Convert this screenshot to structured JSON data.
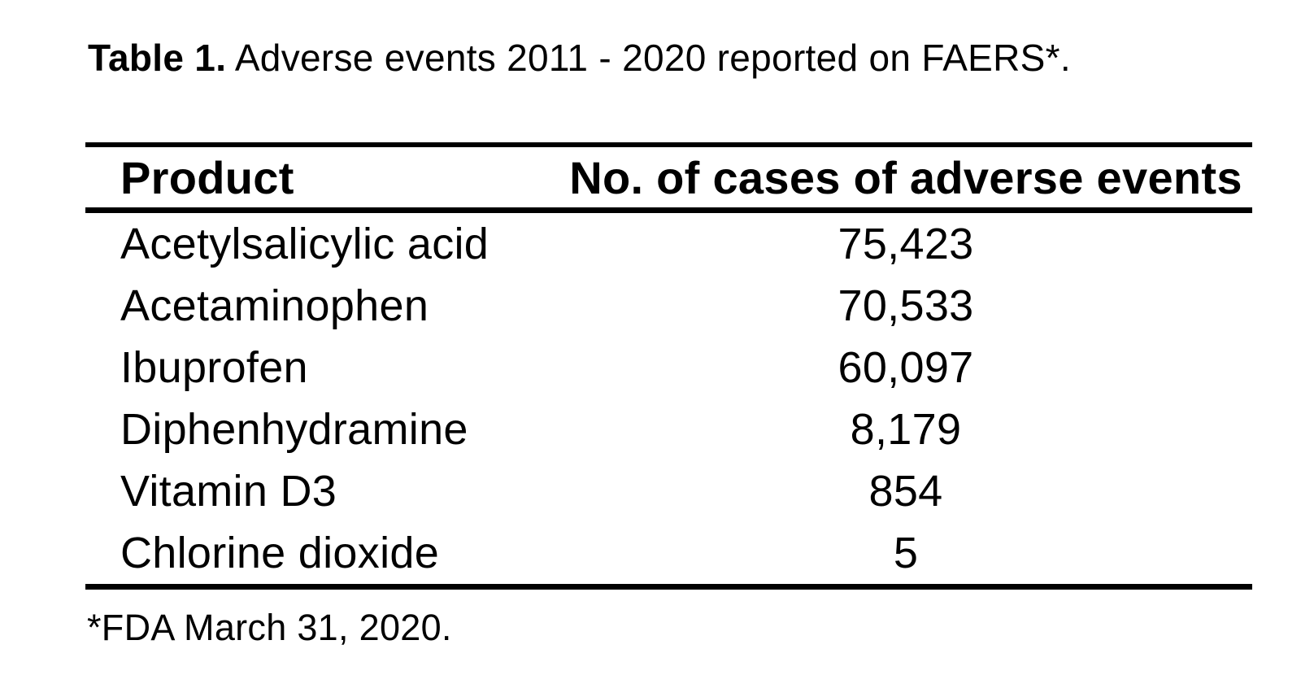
{
  "caption": {
    "label": "Table 1.",
    "text": "Adverse events 2011 - 2020 reported on FAERS*."
  },
  "table": {
    "columns": [
      "Product",
      "No. of cases of adverse events"
    ],
    "rows": [
      {
        "product": "Acetylsalicylic acid",
        "cases": "75,423"
      },
      {
        "product": "Acetaminophen",
        "cases": "70,533"
      },
      {
        "product": "Ibuprofen",
        "cases": "60,097"
      },
      {
        "product": "Diphenhydramine",
        "cases": "8,179"
      },
      {
        "product": "Vitamin D3",
        "cases": "854"
      },
      {
        "product": "Chlorine dioxide",
        "cases": "5"
      }
    ]
  },
  "footnote": "*FDA March 31, 2020.",
  "colors": {
    "text": "#000000",
    "background": "#ffffff",
    "rule": "#000000"
  }
}
